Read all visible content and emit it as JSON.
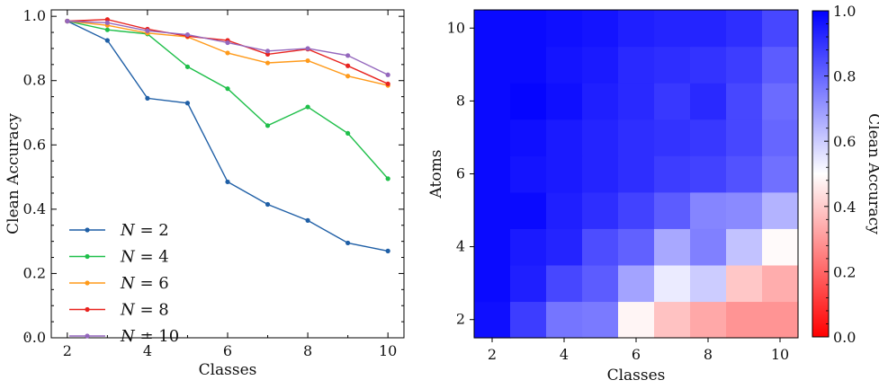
{
  "chart_data": [
    {
      "type": "line",
      "xlabel": "Classes",
      "ylabel": "Clean Accuracy",
      "xlim": [
        1.6,
        10.4
      ],
      "ylim": [
        0.0,
        1.02
      ],
      "x_ticks": [
        2,
        4,
        6,
        8,
        10
      ],
      "y_ticks": [
        0.0,
        0.2,
        0.4,
        0.6,
        0.8,
        1.0
      ],
      "x_tick_labels": [
        "2",
        "4",
        "6",
        "8",
        "10"
      ],
      "y_tick_labels": [
        "0.0",
        "0.2",
        "0.4",
        "0.6",
        "0.8",
        "1.0"
      ],
      "x": [
        2,
        3,
        4,
        5,
        6,
        7,
        8,
        9,
        10
      ],
      "legend_position": "bottom-left",
      "series": [
        {
          "name": "N = 2",
          "label_var": "N",
          "label_val": "2",
          "color": "#1f5fa6",
          "values": [
            0.985,
            0.925,
            0.745,
            0.73,
            0.485,
            0.415,
            0.365,
            0.295,
            0.27
          ]
        },
        {
          "name": "N = 4",
          "label_var": "N",
          "label_val": "4",
          "color": "#1fbf4a",
          "values": [
            0.985,
            0.958,
            0.945,
            0.843,
            0.775,
            0.66,
            0.718,
            0.636,
            0.495
          ]
        },
        {
          "name": "N = 6",
          "label_var": "N",
          "label_val": "6",
          "color": "#ff9a1a",
          "values": [
            0.985,
            0.972,
            0.948,
            0.936,
            0.886,
            0.855,
            0.862,
            0.814,
            0.785
          ]
        },
        {
          "name": "N = 8",
          "label_var": "N",
          "label_val": "8",
          "color": "#e8231f",
          "values": [
            0.985,
            0.99,
            0.96,
            0.938,
            0.925,
            0.882,
            0.898,
            0.846,
            0.79
          ]
        },
        {
          "name": "N = 10",
          "label_var": "N",
          "label_val": "10",
          "color": "#9467bd",
          "values": [
            0.985,
            0.98,
            0.955,
            0.943,
            0.918,
            0.892,
            0.9,
            0.878,
            0.818
          ]
        }
      ]
    },
    {
      "type": "heatmap",
      "xlabel": "Classes",
      "ylabel": "Atoms",
      "x_categories": [
        2,
        3,
        4,
        5,
        6,
        7,
        8,
        9,
        10
      ],
      "y_categories": [
        2,
        3,
        4,
        5,
        6,
        7,
        8,
        9,
        10
      ],
      "x_tick_labels": [
        "2",
        "4",
        "6",
        "8",
        "10"
      ],
      "x_tick_values": [
        2,
        4,
        6,
        8,
        10
      ],
      "y_tick_labels": [
        "2",
        "4",
        "6",
        "8",
        "10"
      ],
      "y_tick_values": [
        2,
        4,
        6,
        8,
        10
      ],
      "colorbar": {
        "label": "Clean Accuracy",
        "range": [
          0.0,
          1.0
        ],
        "ticks": [
          "0.0",
          "0.2",
          "0.4",
          "0.6",
          "0.8",
          "1.0"
        ],
        "tick_values": [
          0.0,
          0.2,
          0.4,
          0.6,
          0.8,
          1.0
        ],
        "colormap": "bwr_r",
        "low_color": "#ff0000",
        "mid_color": "#ffffff",
        "high_color": "#0000ff"
      },
      "rows_by_atoms": {
        "2": [
          0.97,
          0.88,
          0.77,
          0.76,
          0.48,
          0.38,
          0.33,
          0.29,
          0.29
        ],
        "3": [
          0.98,
          0.94,
          0.86,
          0.82,
          0.68,
          0.54,
          0.6,
          0.39,
          0.34
        ],
        "4": [
          0.98,
          0.95,
          0.93,
          0.85,
          0.81,
          0.67,
          0.75,
          0.62,
          0.49
        ],
        "5": [
          0.98,
          0.98,
          0.94,
          0.91,
          0.87,
          0.82,
          0.74,
          0.73,
          0.65
        ],
        "6": [
          0.98,
          0.96,
          0.95,
          0.93,
          0.91,
          0.88,
          0.87,
          0.84,
          0.78
        ],
        "7": [
          0.98,
          0.97,
          0.95,
          0.93,
          0.91,
          0.9,
          0.89,
          0.86,
          0.8
        ],
        "8": [
          0.98,
          0.99,
          0.97,
          0.94,
          0.92,
          0.89,
          0.92,
          0.86,
          0.79
        ],
        "9": [
          0.98,
          0.98,
          0.96,
          0.95,
          0.92,
          0.91,
          0.9,
          0.88,
          0.82
        ],
        "10": [
          0.98,
          0.98,
          0.97,
          0.96,
          0.94,
          0.93,
          0.93,
          0.91,
          0.86
        ]
      }
    }
  ]
}
